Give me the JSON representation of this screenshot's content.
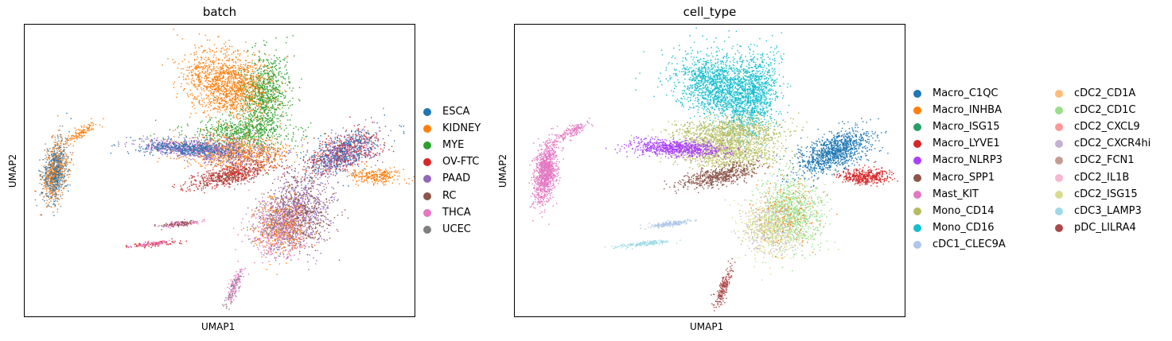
{
  "chart_data": [
    {
      "type": "scatter",
      "title": "batch",
      "xlabel": "UMAP1",
      "ylabel": "UMAP2",
      "legend_position": "right",
      "grid": false,
      "series": [
        {
          "name": "ESCA",
          "color": "#1f77b4"
        },
        {
          "name": "KIDNEY",
          "color": "#ff7f0e"
        },
        {
          "name": "MYE",
          "color": "#2ca02c"
        },
        {
          "name": "OV-FTC",
          "color": "#d62728"
        },
        {
          "name": "PAAD",
          "color": "#9467bd"
        },
        {
          "name": "RC",
          "color": "#8c564b"
        },
        {
          "name": "THCA",
          "color": "#e377c2"
        },
        {
          "name": "UCEC",
          "color": "#7f7f7f"
        }
      ]
    },
    {
      "type": "scatter",
      "title": "cell_type",
      "xlabel": "UMAP1",
      "ylabel": "UMAP2",
      "legend_position": "right",
      "legend_columns": 2,
      "grid": false,
      "series": [
        {
          "name": "Macro_C1QC",
          "color": "#1f77b4"
        },
        {
          "name": "Macro_INHBA",
          "color": "#ff7f0e"
        },
        {
          "name": "Macro_ISG15",
          "color": "#279e68"
        },
        {
          "name": "Macro_LYVE1",
          "color": "#d62728"
        },
        {
          "name": "Macro_NLRP3",
          "color": "#aa40fc"
        },
        {
          "name": "Macro_SPP1",
          "color": "#8c564b"
        },
        {
          "name": "Mast_KIT",
          "color": "#e377c2"
        },
        {
          "name": "Mono_CD14",
          "color": "#b5bd61"
        },
        {
          "name": "Mono_CD16",
          "color": "#17becf"
        },
        {
          "name": "cDC1_CLEC9A",
          "color": "#aec7e8"
        },
        {
          "name": "cDC2_CD1A",
          "color": "#ffbb78"
        },
        {
          "name": "cDC2_CD1C",
          "color": "#98df8a"
        },
        {
          "name": "cDC2_CXCL9",
          "color": "#ff9896"
        },
        {
          "name": "cDC2_CXCR4hi",
          "color": "#c5b0d5"
        },
        {
          "name": "cDC2_FCN1",
          "color": "#c49c94"
        },
        {
          "name": "cDC2_IL1B",
          "color": "#f7b6d2"
        },
        {
          "name": "cDC2_ISG15",
          "color": "#dbdb8d"
        },
        {
          "name": "cDC3_LAMP3",
          "color": "#9edae5"
        },
        {
          "name": "pDC_LILRA4",
          "color": "#ad494a"
        }
      ]
    }
  ]
}
